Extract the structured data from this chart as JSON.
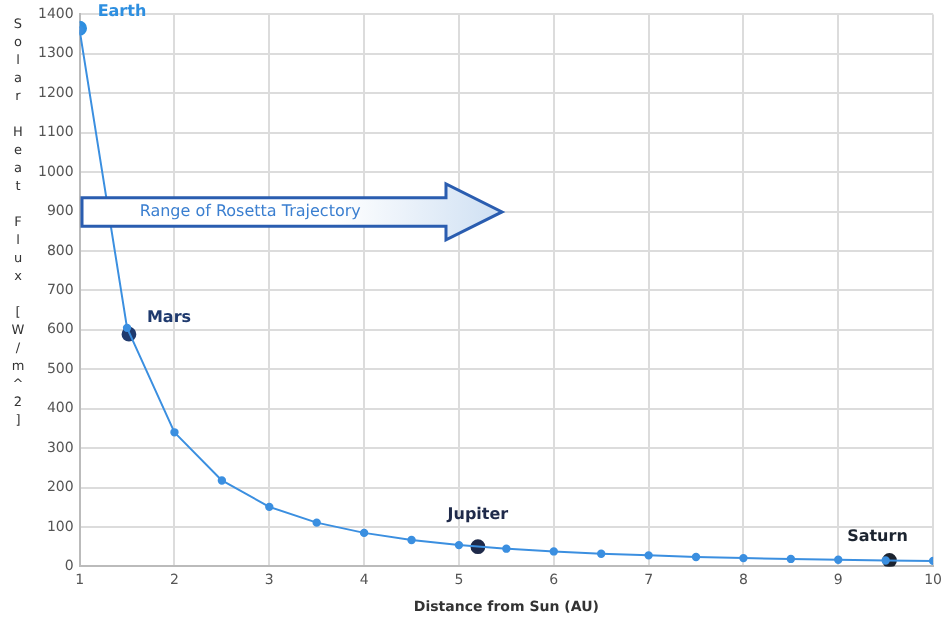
{
  "chart_data": {
    "type": "line",
    "xlabel": "Distance from Sun (AU)",
    "ylabel": "Solar Heat Flux [W/m^2]",
    "xlim": [
      1,
      10
    ],
    "xticks": [
      1,
      2,
      3,
      4,
      5,
      6,
      7,
      8,
      9,
      10
    ],
    "ylim": [
      0,
      1400
    ],
    "yticks": [
      0,
      100,
      200,
      300,
      400,
      500,
      600,
      700,
      800,
      900,
      1000,
      1100,
      1200,
      1300,
      1400
    ],
    "grid": true,
    "legend": false,
    "marker": "circle",
    "series": [
      {
        "color": "#3b8fe0",
        "x": [
          1,
          1.5,
          2,
          2.5,
          3,
          3.5,
          4,
          4.5,
          5,
          5.5,
          6,
          6.5,
          7,
          7.5,
          8,
          8.5,
          9,
          9.5,
          10
        ],
        "values": [
          1360,
          605,
          340,
          218,
          151,
          111,
          85,
          67,
          54,
          45,
          38,
          32,
          28,
          24,
          21,
          19,
          17,
          15,
          14
        ]
      },
      {
        "type": "scatter",
        "colors": [
          "#2e8fe0",
          "#1f3a6e",
          "#1f2a4a",
          "#1c2430"
        ],
        "x": [
          1,
          1.52,
          5.2,
          9.54
        ],
        "values": [
          1365,
          589,
          50,
          15
        ]
      }
    ],
    "annotations": [
      {
        "text": "Earth",
        "x": 1,
        "y": 1365
      },
      {
        "text": "Mars",
        "x": 1.52,
        "y": 589
      },
      {
        "text": "Jupiter",
        "x": 5.2,
        "y": 50
      },
      {
        "text": "Saturn",
        "x": 9.54,
        "y": 15
      },
      "Range of Rosetta Trajectory"
    ]
  }
}
